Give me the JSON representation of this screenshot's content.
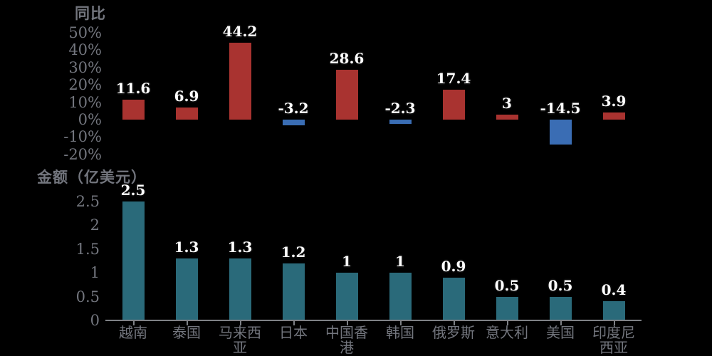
{
  "background_color": "#000000",
  "colors": {
    "yoy_positive_bar": "#a93330",
    "yoy_negative_bar": "#3a6db4",
    "amount_bar": "#2a6a7a",
    "axis_text": "#73767e",
    "axis_line": "#7e8186",
    "data_label_text": "#ffffff",
    "data_label_outline": "#0a0a0a"
  },
  "categories": [
    "越南",
    "泰国",
    "马来西亚",
    "日本",
    "中国香港",
    "韩国",
    "俄罗斯",
    "意大利",
    "美国",
    "印度尼西亚"
  ],
  "chart_data": [
    {
      "type": "bar",
      "title": "同比",
      "unit": "%",
      "categories": [
        "越南",
        "泰国",
        "马来西亚",
        "日本",
        "中国香港",
        "韩国",
        "俄罗斯",
        "意大利",
        "美国",
        "印度尼西亚"
      ],
      "values": [
        11.6,
        6.9,
        44.2,
        -3.2,
        28.6,
        -2.3,
        17.4,
        3,
        -14.5,
        3.9
      ],
      "value_labels": [
        "11.6",
        "6.9",
        "44.2",
        "-3.2",
        "28.6",
        "-2.3",
        "17.4",
        "3",
        "-14.5",
        "3.9"
      ],
      "ylim": [
        -20,
        50
      ],
      "yticks": [
        {
          "label": "50%",
          "value": 50
        },
        {
          "label": "40%",
          "value": 40
        },
        {
          "label": "30%",
          "value": 30
        },
        {
          "label": "20%",
          "value": 20
        },
        {
          "label": "10%",
          "value": 10
        },
        {
          "label": "0%",
          "value": 0
        },
        {
          "label": "-10%",
          "value": -10
        },
        {
          "label": "-20%",
          "value": -20
        }
      ],
      "grid": false,
      "legend": "none",
      "x_axis_labels_shown": false,
      "bar_color_positive": "#a93330",
      "bar_color_negative": "#3a6db4"
    },
    {
      "type": "bar",
      "title": "金额（亿美元）",
      "unit": "亿美元",
      "categories": [
        "越南",
        "泰国",
        "马来西亚",
        "日本",
        "中国香港",
        "韩国",
        "俄罗斯",
        "意大利",
        "美国",
        "印度尼西亚"
      ],
      "values": [
        2.5,
        1.3,
        1.3,
        1.2,
        1,
        1,
        0.9,
        0.5,
        0.5,
        0.4
      ],
      "value_labels": [
        "2.5",
        "1.3",
        "1.3",
        "1.2",
        "1",
        "1",
        "0.9",
        "0.5",
        "0.5",
        "0.4"
      ],
      "ylim": [
        0,
        2.5
      ],
      "yticks": [
        {
          "label": "2.5",
          "value": 2.5
        },
        {
          "label": "2",
          "value": 2
        },
        {
          "label": "1.5",
          "value": 1.5
        },
        {
          "label": "1",
          "value": 1
        },
        {
          "label": "0.5",
          "value": 0.5
        },
        {
          "label": "0",
          "value": 0
        }
      ],
      "grid": false,
      "legend": "none",
      "x_axis_labels_shown": true,
      "bar_color": "#2a6a7a"
    }
  ]
}
